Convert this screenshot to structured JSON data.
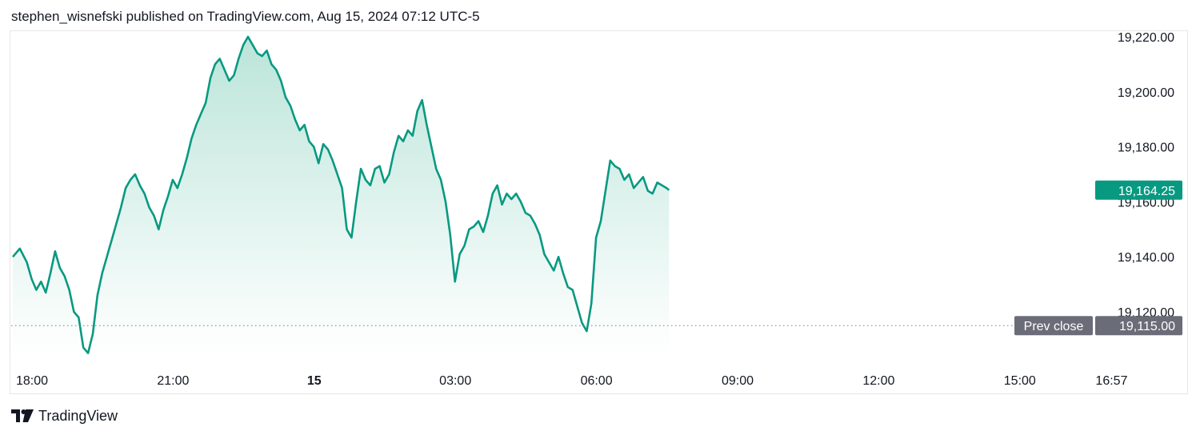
{
  "header": {
    "attribution": "stephen_wisnefski published on TradingView.com, Aug 15, 2024 07:12 UTC-5"
  },
  "footer": {
    "brand": "TradingView"
  },
  "colors": {
    "line": "#089981",
    "fill_top": "#b7e3d7",
    "fill_bottom": "#ffffff",
    "price_tag_bg": "#089981",
    "prev_close_tag_bg": "#6a6d78",
    "dotted": "#787b86"
  },
  "chart_data": {
    "type": "area",
    "y_axis_ticks": [
      "19,120.00",
      "19,140.00",
      "19,160.00",
      "19,180.00",
      "19,200.00",
      "19,220.00"
    ],
    "y_tick_values": [
      19120,
      19140,
      19160,
      19180,
      19200,
      19220
    ],
    "ylim": [
      19100,
      19225
    ],
    "x_axis_ticks": [
      {
        "label": "18:00",
        "t": 0,
        "bold": false
      },
      {
        "label": "21:00",
        "t": 3,
        "bold": false
      },
      {
        "label": "15",
        "t": 6,
        "bold": true
      },
      {
        "label": "03:00",
        "t": 9,
        "bold": false
      },
      {
        "label": "06:00",
        "t": 12,
        "bold": false
      },
      {
        "label": "09:00",
        "t": 15,
        "bold": false
      },
      {
        "label": "12:00",
        "t": 18,
        "bold": false
      },
      {
        "label": "15:00",
        "t": 21,
        "bold": false
      },
      {
        "label": "16:57",
        "t": 22.95,
        "bold": false
      }
    ],
    "x_range_hours": [
      0,
      23
    ],
    "x_unit": "hours since 18:00 (Aug 14)",
    "last_price": {
      "value": 19164.25,
      "label": "19,164.25"
    },
    "prev_close": {
      "value": 19115.0,
      "label": "19,115.00",
      "tag": "Prev close"
    },
    "series": [
      {
        "x": [
          0,
          0.15,
          0.3,
          0.4,
          0.5,
          0.6,
          0.7,
          0.8,
          0.9,
          1.0,
          1.1,
          1.2,
          1.3,
          1.4,
          1.5,
          1.6,
          1.7,
          1.8,
          1.9,
          2.0,
          2.05,
          2.1,
          2.2,
          2.3,
          2.4,
          2.5,
          2.6,
          2.7,
          2.8,
          2.9,
          3.0,
          3.1,
          3.2,
          3.3,
          3.4,
          3.5,
          3.6,
          3.7,
          3.8,
          3.9,
          4.0,
          4.1,
          4.2,
          4.3,
          4.4,
          4.5,
          4.6,
          4.7,
          4.8,
          4.9,
          5.0,
          5.1,
          5.2,
          5.3,
          5.4,
          5.5,
          5.6,
          5.7,
          5.8,
          5.9,
          6.0,
          6.1,
          6.2,
          6.3,
          6.4,
          6.5,
          6.6,
          6.7,
          6.8,
          6.9,
          7.0,
          7.1,
          7.2,
          7.3,
          7.4,
          7.5,
          7.6,
          7.7,
          7.8,
          7.9,
          8.0,
          8.1,
          8.2,
          8.3,
          8.4,
          8.5,
          8.6,
          8.7,
          8.8,
          8.9,
          9.0,
          9.1,
          9.2,
          9.3,
          9.4,
          9.5,
          9.6,
          9.7,
          9.8,
          9.9,
          10.0,
          10.1,
          10.2,
          10.3,
          10.4,
          10.5,
          10.6,
          10.7,
          10.8,
          10.9,
          11.0,
          11.1,
          11.2,
          11.3,
          11.4,
          11.5,
          11.6,
          11.7,
          11.8,
          11.9,
          12.0,
          12.1,
          12.2,
          12.3,
          12.4,
          12.5,
          12.6,
          12.7,
          12.8,
          12.9,
          13.0,
          13.1,
          13.2,
          13.3,
          13.4,
          13.5,
          13.6,
          13.7,
          13.8,
          13.9,
          13.95
        ],
        "values": [
          19140,
          19143,
          19138,
          19132,
          19128,
          19131,
          19127,
          19134,
          19142,
          19136,
          19133,
          19128,
          19120,
          19118,
          19107,
          19105,
          19112,
          19126,
          19134,
          19140,
          19143,
          19146,
          19152,
          19158,
          19165,
          19168,
          19170,
          19166,
          19163,
          19158,
          19155,
          19150,
          19157,
          19162,
          19168,
          19165,
          19170,
          19176,
          19183,
          19188,
          19192,
          19196,
          19205,
          19210,
          19212,
          19208,
          19204,
          19206,
          19212,
          19217,
          19220,
          19217,
          19214,
          19213,
          19215,
          19210,
          19208,
          19204,
          19198,
          19195,
          19190,
          19186,
          19188,
          19182,
          19180,
          19174,
          19181,
          19179,
          19175,
          19170,
          19165,
          19150,
          19147,
          19160,
          19172,
          19168,
          19166,
          19172,
          19173,
          19167,
          19170,
          19178,
          19184,
          19182,
          19186,
          19184,
          19193,
          19197,
          19188,
          19180,
          19172,
          19168,
          19160,
          19148,
          19131,
          19141,
          19144,
          19150,
          19151,
          19153,
          19149,
          19155,
          19163,
          19166,
          19159,
          19163,
          19161,
          19163,
          19160,
          19156,
          19155,
          19152,
          19148,
          19141,
          19138,
          19135,
          19140,
          19134,
          19129,
          19128,
          19122,
          19116,
          19113,
          19123,
          19147,
          19153,
          19164,
          19175,
          19173,
          19172,
          19168,
          19170,
          19165,
          19167,
          19169,
          19164,
          19163,
          19167,
          19166,
          19165,
          19164.25
        ]
      }
    ]
  }
}
